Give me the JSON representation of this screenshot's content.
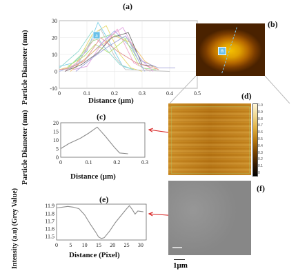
{
  "figure": {
    "panel_labels": {
      "a": "(a)",
      "b": "(b)",
      "c": "(c)",
      "d": "(d)",
      "e": "(e)",
      "f": "(f)"
    },
    "marker_text": "a",
    "scale_bar_label": "1μm"
  },
  "chart_data": [
    {
      "id": "a",
      "type": "line",
      "xlabel": "Distance (μm)",
      "ylabel": "Particle Diameter (nm)",
      "xlim": [
        0,
        0.5
      ],
      "ylim": [
        -10,
        30
      ],
      "x_ticks": [
        "0",
        "0.1",
        "0.2",
        "0.3",
        "0.4",
        "0.5"
      ],
      "y_ticks": [
        "-10",
        "0",
        "10",
        "20",
        "30"
      ],
      "series": [
        {
          "color": "#e8d86a",
          "points": [
            [
              0.0,
              1
            ],
            [
              0.06,
              4
            ],
            [
              0.12,
              22
            ],
            [
              0.17,
              27
            ],
            [
              0.22,
              10
            ],
            [
              0.26,
              2
            ],
            [
              0.3,
              0
            ]
          ]
        },
        {
          "color": "#7fd1e8",
          "points": [
            [
              0.0,
              3
            ],
            [
              0.05,
              5
            ],
            [
              0.1,
              12
            ],
            [
              0.14,
              29
            ],
            [
              0.18,
              18
            ],
            [
              0.23,
              3
            ],
            [
              0.27,
              1
            ]
          ]
        },
        {
          "color": "#f0a0c8",
          "points": [
            [
              0.02,
              0
            ],
            [
              0.07,
              6
            ],
            [
              0.13,
              20
            ],
            [
              0.16,
              15
            ],
            [
              0.21,
              25
            ],
            [
              0.27,
              5
            ],
            [
              0.33,
              0
            ]
          ]
        },
        {
          "color": "#a0e090",
          "points": [
            [
              0.03,
              2
            ],
            [
              0.08,
              10
            ],
            [
              0.12,
              18
            ],
            [
              0.19,
              22
            ],
            [
              0.25,
              19
            ],
            [
              0.3,
              2
            ],
            [
              0.35,
              1
            ]
          ]
        },
        {
          "color": "#9aa8e8",
          "points": [
            [
              0.0,
              0
            ],
            [
              0.05,
              3
            ],
            [
              0.1,
              8
            ],
            [
              0.15,
              16
            ],
            [
              0.2,
              24
            ],
            [
              0.26,
              14
            ],
            [
              0.31,
              0
            ]
          ]
        },
        {
          "color": "#c0c0c0",
          "points": [
            [
              0.01,
              1
            ],
            [
              0.06,
              2
            ],
            [
              0.11,
              17
            ],
            [
              0.15,
              25
            ],
            [
              0.2,
              9
            ],
            [
              0.24,
              1
            ],
            [
              0.4,
              0
            ]
          ]
        },
        {
          "color": "#f0c070",
          "points": [
            [
              0.04,
              0
            ],
            [
              0.09,
              7
            ],
            [
              0.14,
              14
            ],
            [
              0.2,
              21
            ],
            [
              0.26,
              17
            ],
            [
              0.31,
              6
            ],
            [
              0.36,
              1
            ]
          ]
        },
        {
          "color": "#90d8d0",
          "points": [
            [
              0.0,
              2
            ],
            [
              0.07,
              12
            ],
            [
              0.12,
              24
            ],
            [
              0.17,
              13
            ],
            [
              0.22,
              4
            ],
            [
              0.27,
              1
            ]
          ]
        },
        {
          "color": "#e0a0e0",
          "points": [
            [
              0.05,
              1
            ],
            [
              0.1,
              3
            ],
            [
              0.16,
              18
            ],
            [
              0.23,
              26
            ],
            [
              0.29,
              8
            ],
            [
              0.34,
              0
            ]
          ]
        },
        {
          "color": "#707070",
          "points": [
            [
              0.02,
              0
            ],
            [
              0.08,
              4
            ],
            [
              0.14,
              11
            ],
            [
              0.19,
              20
            ],
            [
              0.25,
              23
            ],
            [
              0.3,
              4
            ],
            [
              0.34,
              3
            ]
          ]
        },
        {
          "color": "#b8e070",
          "points": [
            [
              0.03,
              3
            ],
            [
              0.09,
              9
            ],
            [
              0.13,
              16
            ],
            [
              0.18,
              11
            ],
            [
              0.24,
              19
            ],
            [
              0.29,
              3
            ]
          ]
        },
        {
          "color": "#e09090",
          "points": [
            [
              0.0,
              1
            ],
            [
              0.04,
              2
            ],
            [
              0.09,
              6
            ],
            [
              0.15,
              20
            ],
            [
              0.21,
              12
            ],
            [
              0.28,
              5
            ],
            [
              0.36,
              1
            ]
          ]
        },
        {
          "color": "#a0a0d8",
          "points": [
            [
              0.06,
              0
            ],
            [
              0.12,
              8
            ],
            [
              0.18,
              15
            ],
            [
              0.24,
              21
            ],
            [
              0.3,
              6
            ],
            [
              0.36,
              2
            ],
            [
              0.42,
              2
            ]
          ]
        }
      ]
    },
    {
      "id": "c",
      "type": "line",
      "xlabel": "Distance (μm)",
      "ylabel": "Particle Diameter (nm)",
      "xlim": [
        0,
        0.3
      ],
      "ylim": [
        0,
        20
      ],
      "x_ticks": [
        "0",
        "0.1",
        "0.2",
        "0.3"
      ],
      "y_ticks": [
        "0",
        "5",
        "10",
        "15",
        "20"
      ],
      "series": [
        {
          "color": "#8c8c8c",
          "points": [
            [
              0.0,
              5
            ],
            [
              0.03,
              8
            ],
            [
              0.07,
              11
            ],
            [
              0.1,
              14
            ],
            [
              0.13,
              17.5
            ],
            [
              0.16,
              12
            ],
            [
              0.19,
              6
            ],
            [
              0.21,
              2.5
            ],
            [
              0.24,
              2
            ]
          ]
        }
      ]
    },
    {
      "id": "e",
      "type": "line",
      "xlabel": "Distance (Pixel)",
      "ylabel": "Intensity (a.u) (Grey Value)",
      "xlim": [
        0,
        32
      ],
      "ylim": [
        11.45,
        11.92
      ],
      "x_ticks": [
        "0",
        "5",
        "10",
        "15",
        "20",
        "25",
        "30"
      ],
      "y_ticks": [
        "11.5",
        "11.6",
        "11.7",
        "11.8",
        "11.9"
      ],
      "series": [
        {
          "color": "#8c8c8c",
          "points": [
            [
              0,
              11.87
            ],
            [
              2,
              11.88
            ],
            [
              4,
              11.89
            ],
            [
              6,
              11.88
            ],
            [
              8,
              11.86
            ],
            [
              10,
              11.78
            ],
            [
              12,
              11.66
            ],
            [
              14,
              11.55
            ],
            [
              15,
              11.49
            ],
            [
              16,
              11.47
            ],
            [
              17,
              11.48
            ],
            [
              19,
              11.57
            ],
            [
              21,
              11.68
            ],
            [
              23,
              11.77
            ],
            [
              25,
              11.86
            ],
            [
              26,
              11.9
            ],
            [
              27,
              11.85
            ],
            [
              28,
              11.79
            ],
            [
              29,
              11.83
            ],
            [
              31,
              11.82
            ]
          ]
        }
      ]
    }
  ],
  "colorbar": {
    "ticks": [
      "0",
      "0.1",
      "0.2",
      "0.3",
      "0.4",
      "0.5",
      "0.6",
      "0.7",
      "0.8",
      "0.9",
      "1.0"
    ],
    "colors": [
      "#000000",
      "#3a1c00",
      "#7a4400",
      "#b87a10",
      "#e0b040",
      "#f0d890",
      "#fff6d8"
    ]
  },
  "annotation_color": "#d82020"
}
